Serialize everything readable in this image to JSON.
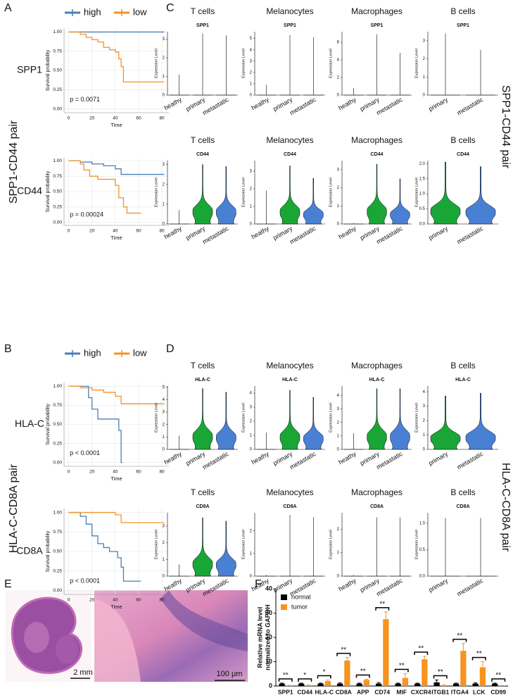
{
  "figure": {
    "letters": [
      "A",
      "B",
      "C",
      "D",
      "E",
      "F"
    ],
    "pair_labels": [
      "SPP1-CD44 pair",
      "HLA-C-CD8A pair"
    ],
    "scale_bars": [
      "2 mm",
      "100 μm"
    ]
  },
  "chart_data": [
    {
      "type": "km",
      "title": "SPP1",
      "annotation": "p = 0.0071",
      "xlabel": "Time",
      "ylabel": "Survival probability",
      "legend": true,
      "xlim": [
        -4,
        86
      ],
      "ylim": [
        -0.05,
        1.05
      ],
      "xticks": [
        0,
        20,
        40,
        60,
        80
      ],
      "yticks": [
        {
          "value": 0,
          "label": "0.00"
        },
        {
          "value": 0.25,
          "label": "0.25"
        },
        {
          "value": 0.5,
          "label": "0.50"
        },
        {
          "value": 0.75,
          "label": "0.75"
        },
        {
          "value": 1,
          "label": "1.00"
        }
      ],
      "series": [
        {
          "name": "high",
          "color": "#4a7fb5",
          "x": [
            0,
            82
          ],
          "values": [
            1,
            1
          ]
        },
        {
          "name": "low",
          "color": "#f39325",
          "x": [
            0,
            10,
            15,
            20,
            25,
            30,
            35,
            40,
            43,
            45,
            47,
            82
          ],
          "values": [
            1,
            0.97,
            0.93,
            0.9,
            0.87,
            0.8,
            0.77,
            0.74,
            0.65,
            0.55,
            0.35,
            0.35
          ]
        }
      ]
    },
    {
      "type": "km",
      "title": "CD44",
      "annotation": "p = 0.00024",
      "xlabel": "Time",
      "ylabel": "Survival probability",
      "legend": false,
      "xlim": [
        -4,
        86
      ],
      "ylim": [
        -0.05,
        1.05
      ],
      "xticks": [
        0,
        20,
        40,
        60,
        80
      ],
      "yticks": [
        {
          "value": 0,
          "label": "0.00"
        },
        {
          "value": 0.25,
          "label": "0.25"
        },
        {
          "value": 0.5,
          "label": "0.50"
        },
        {
          "value": 0.75,
          "label": "0.75"
        },
        {
          "value": 1,
          "label": "1.00"
        }
      ],
      "series": [
        {
          "name": "high",
          "color": "#4a7fb5",
          "x": [
            0,
            10,
            20,
            30,
            40,
            45,
            82
          ],
          "values": [
            1,
            0.98,
            0.95,
            0.92,
            0.87,
            0.78,
            0.78
          ]
        },
        {
          "name": "low",
          "color": "#f39325",
          "x": [
            0,
            10,
            13,
            18,
            25,
            40,
            43,
            47,
            50,
            62
          ],
          "values": [
            1,
            0.95,
            0.85,
            0.75,
            0.7,
            0.6,
            0.4,
            0.25,
            0.15,
            0.15
          ]
        }
      ]
    },
    {
      "type": "km",
      "title": "HLA-C",
      "annotation": "p < 0.0001",
      "xlabel": "Time",
      "ylabel": "Survival probability",
      "legend": true,
      "xlim": [
        -4,
        86
      ],
      "ylim": [
        -0.05,
        1.05
      ],
      "xticks": [
        0,
        20,
        40,
        60,
        80
      ],
      "yticks": [
        {
          "value": 0,
          "label": "0.00"
        },
        {
          "value": 0.25,
          "label": "0.25"
        },
        {
          "value": 0.5,
          "label": "0.50"
        },
        {
          "value": 0.75,
          "label": "0.75"
        },
        {
          "value": 1,
          "label": "1.00"
        }
      ],
      "series": [
        {
          "name": "high",
          "color": "#4a7fb5",
          "x": [
            0,
            17,
            20,
            25,
            40,
            43,
            45,
            46
          ],
          "values": [
            1,
            0.85,
            0.7,
            0.57,
            0.57,
            0.42,
            0,
            0
          ]
        },
        {
          "name": "low",
          "color": "#f39325",
          "x": [
            0,
            10,
            20,
            30,
            40,
            45,
            82
          ],
          "values": [
            1,
            0.98,
            0.95,
            0.92,
            0.87,
            0.77,
            0.77
          ]
        }
      ]
    },
    {
      "type": "km",
      "title": "CD8A",
      "annotation": "p < 0.0001",
      "xlabel": "Time",
      "ylabel": "Survival probability",
      "legend": false,
      "xlim": [
        -4,
        86
      ],
      "ylim": [
        -0.05,
        1.05
      ],
      "xticks": [
        0,
        20,
        40,
        60,
        80
      ],
      "yticks": [
        {
          "value": 0,
          "label": "0.00"
        },
        {
          "value": 0.25,
          "label": "0.25"
        },
        {
          "value": 0.5,
          "label": "0.50"
        },
        {
          "value": 0.75,
          "label": "0.75"
        },
        {
          "value": 1,
          "label": "1.00"
        }
      ],
      "series": [
        {
          "name": "high",
          "color": "#4a7fb5",
          "x": [
            0,
            10,
            15,
            20,
            25,
            30,
            35,
            42,
            45,
            47,
            62
          ],
          "values": [
            1,
            0.95,
            0.85,
            0.7,
            0.6,
            0.55,
            0.5,
            0.42,
            0.3,
            0.12,
            0.12
          ]
        },
        {
          "name": "low",
          "color": "#f39325",
          "x": [
            0,
            40,
            45,
            82
          ],
          "values": [
            1,
            0.97,
            0.87,
            0.87
          ]
        }
      ]
    },
    {
      "type": "violin",
      "title": "T cells",
      "subtitle": "SPP1",
      "ylabel": "Expression Level",
      "categories": [
        "heathy",
        "primary",
        "metastatic"
      ],
      "values": [
        1.1,
        3.3,
        3.2
      ],
      "filled": [
        false,
        false,
        false
      ],
      "colors": [
        "#000000",
        "#000000",
        "#000000"
      ],
      "ylim": [
        0,
        3.4
      ],
      "yticks": [
        0,
        1,
        2,
        3
      ]
    },
    {
      "type": "violin",
      "title": "Melanocytes",
      "subtitle": "SPP1",
      "ylabel": "Expression Level",
      "categories": [
        "heathy",
        "primary",
        "metastatic"
      ],
      "values": [
        0.9,
        5.3,
        5.1
      ],
      "filled": [
        false,
        false,
        false
      ],
      "colors": [
        "#000000",
        "#000000",
        "#000000"
      ],
      "ylim": [
        0,
        5.6
      ],
      "yticks": [
        0,
        1,
        2,
        3,
        4,
        5
      ]
    },
    {
      "type": "violin",
      "title": "Macrophages",
      "subtitle": "SPP1",
      "ylabel": "Expression Level",
      "categories": [
        "heathy",
        "primary",
        "metastatic"
      ],
      "values": [
        0.8,
        6.9,
        4.8
      ],
      "filled": [
        false,
        false,
        false
      ],
      "colors": [
        "#000000",
        "#000000",
        "#000000"
      ],
      "ylim": [
        0,
        7.2
      ],
      "yticks": [
        0,
        2,
        4,
        6
      ]
    },
    {
      "type": "violin",
      "title": "B cells",
      "subtitle": "SPP1",
      "ylabel": "Expression Level",
      "categories": [
        "primary",
        "metastatic"
      ],
      "values": [
        3.4,
        2.5
      ],
      "filled": [
        false,
        false
      ],
      "colors": [
        "#000000",
        "#000000"
      ],
      "ylim": [
        0,
        3.5
      ],
      "yticks": [
        0,
        1,
        2,
        3
      ]
    },
    {
      "type": "violin",
      "title": "T cells",
      "subtitle": "CD44",
      "ylabel": "Expression Level",
      "categories": [
        "heathy",
        "primary",
        "metastatic"
      ],
      "values": [
        0.7,
        3.0,
        2.9
      ],
      "filled": [
        false,
        true,
        true
      ],
      "colors": [
        "#000000",
        "#1aa637",
        "#4a80d4"
      ],
      "ylim": [
        0,
        3.2
      ],
      "yticks": [
        0,
        1,
        2,
        3
      ]
    },
    {
      "type": "violin",
      "title": "Melanocytes",
      "subtitle": "CD44",
      "ylabel": "Expression Level",
      "categories": [
        "heathy",
        "primary",
        "metastatic"
      ],
      "values": [
        1.9,
        3.3,
        2.6
      ],
      "filled": [
        false,
        true,
        true
      ],
      "colors": [
        "#000000",
        "#1aa637",
        "#4a80d4"
      ],
      "ylim": [
        0,
        3.6
      ],
      "yticks": [
        0,
        1,
        2,
        3
      ]
    },
    {
      "type": "violin",
      "title": "Macrophages",
      "subtitle": "CD44",
      "ylabel": "Expression Level",
      "categories": [
        "heathy",
        "primary",
        "metastatic"
      ],
      "values": [
        0.05,
        3.3,
        2.5
      ],
      "filled": [
        false,
        true,
        true
      ],
      "colors": [
        "#000000",
        "#1aa637",
        "#4a80d4"
      ],
      "ylim": [
        0,
        3.5
      ],
      "yticks": [
        0,
        1,
        2,
        3
      ]
    },
    {
      "type": "violin",
      "title": "B cells",
      "subtitle": "CD44",
      "ylabel": "Expression Level",
      "categories": [
        "primary",
        "metastatic"
      ],
      "values": [
        2.05,
        1.9
      ],
      "filled": [
        true,
        true
      ],
      "colors": [
        "#1aa637",
        "#4a80d4"
      ],
      "ylim": [
        0,
        2.1
      ],
      "yticks": [
        {
          "value": 0,
          "label": "0.0"
        },
        {
          "value": 0.5,
          "label": "0.5"
        },
        {
          "value": 1,
          "label": "1.0"
        },
        {
          "value": 1.5,
          "label": "1.5"
        },
        {
          "value": 2,
          "label": "2.0"
        }
      ]
    },
    {
      "type": "violin",
      "title": "T cells",
      "subtitle": "HLA-C",
      "ylabel": "Expression Level",
      "categories": [
        "heathy",
        "primary",
        "metastatic"
      ],
      "values": [
        1.1,
        4.9,
        4.6
      ],
      "filled": [
        false,
        true,
        true
      ],
      "colors": [
        "#000000",
        "#1aa637",
        "#4a80d4"
      ],
      "ylim": [
        0,
        5.1
      ],
      "yticks": [
        0,
        1,
        2,
        3,
        4,
        5
      ]
    },
    {
      "type": "violin",
      "title": "Melanocytes",
      "subtitle": "HLA-C",
      "ylabel": "Expression Level",
      "categories": [
        "heathy",
        "primary",
        "metastatic"
      ],
      "values": [
        1.2,
        4.2,
        3.7
      ],
      "filled": [
        false,
        true,
        true
      ],
      "colors": [
        "#000000",
        "#1aa637",
        "#4a80d4"
      ],
      "ylim": [
        0,
        4.5
      ],
      "yticks": [
        0,
        1,
        2,
        3,
        4
      ]
    },
    {
      "type": "violin",
      "title": "Macrophages",
      "subtitle": "HLA-C",
      "ylabel": "Expression Level",
      "categories": [
        "heathy",
        "primary",
        "metastatic"
      ],
      "values": [
        1.2,
        4.5,
        4.5
      ],
      "filled": [
        false,
        true,
        true
      ],
      "colors": [
        "#000000",
        "#1aa637",
        "#4a80d4"
      ],
      "ylim": [
        0,
        4.7
      ],
      "yticks": [
        0,
        1,
        2,
        3,
        4
      ]
    },
    {
      "type": "violin",
      "title": "B cells",
      "subtitle": "HLA-C",
      "ylabel": "Expression Level",
      "categories": [
        "primary",
        "metastatic"
      ],
      "values": [
        3.7,
        3.9
      ],
      "filled": [
        true,
        true
      ],
      "colors": [
        "#1aa637",
        "#4a80d4"
      ],
      "ylim": [
        0,
        4.4
      ],
      "yticks": [
        0,
        1,
        2,
        3,
        4
      ]
    },
    {
      "type": "violin",
      "title": "T cells",
      "subtitle": "CD8A",
      "ylabel": "Expression Level",
      "categories": [
        "heathy",
        "primary",
        "metastatic"
      ],
      "values": [
        0.7,
        3.5,
        3.3
      ],
      "filled": [
        false,
        true,
        true
      ],
      "colors": [
        "#000000",
        "#1aa637",
        "#4a80d4"
      ],
      "ylim": [
        0,
        3.8
      ],
      "yticks": [
        0,
        1,
        2,
        3
      ]
    },
    {
      "type": "violin",
      "title": "Melanocytes",
      "subtitle": "CD8A",
      "ylabel": "Expression Level",
      "categories": [
        "heathy",
        "primary",
        "metastatic"
      ],
      "values": [
        0.05,
        2.7,
        2.6
      ],
      "filled": [
        false,
        false,
        false
      ],
      "colors": [
        "#000000",
        "#000000",
        "#000000"
      ],
      "ylim": [
        0,
        2.8
      ],
      "yticks": [
        0,
        1,
        2
      ]
    },
    {
      "type": "violin",
      "title": "Macrophages",
      "subtitle": "CD8A",
      "ylabel": "Expression Level",
      "categories": [
        "heathy",
        "primary",
        "metastatic"
      ],
      "values": [
        0.05,
        2.5,
        2.5
      ],
      "filled": [
        false,
        false,
        false
      ],
      "colors": [
        "#000000",
        "#000000",
        "#000000"
      ],
      "ylim": [
        0,
        2.7
      ],
      "yticks": [
        0,
        1,
        2
      ]
    },
    {
      "type": "violin",
      "title": "B cells",
      "subtitle": "CD8A",
      "ylabel": "Expression Level",
      "categories": [
        "primary",
        "metastatic"
      ],
      "values": [
        1.1,
        1.1
      ],
      "filled": [
        false,
        false
      ],
      "colors": [
        "#000000",
        "#000000"
      ],
      "ylim": [
        0,
        1.2
      ],
      "yticks": [
        {
          "value": 0,
          "label": "0.0"
        },
        {
          "value": 0.5,
          "label": "0.5"
        },
        {
          "value": 1,
          "label": "1.0"
        }
      ]
    },
    {
      "type": "bar",
      "ylabel": [
        "Relative mRNA level",
        "normalized to GAPDH"
      ],
      "legend": "top-left",
      "categories": [
        "SPP1",
        "CD44",
        "HLA-C",
        "CD8A",
        "APP",
        "CD74",
        "MIF",
        "CXCR4",
        "ITGB1",
        "ITGA4",
        "LCK",
        "CD99"
      ],
      "significance": [
        "**",
        "*",
        "*",
        "**",
        "**",
        "**",
        "**",
        "**",
        "**",
        "**",
        "**",
        "**"
      ],
      "ylim": [
        0,
        40
      ],
      "yticks": [
        0,
        10,
        20,
        30,
        40
      ],
      "series": [
        {
          "name": "normal",
          "color": "#000000",
          "values": [
            1,
            1,
            1,
            1,
            1,
            1,
            1,
            1,
            1.5,
            1,
            1,
            1
          ],
          "errors": [
            0.2,
            0.2,
            0.2,
            0.3,
            0.2,
            0.4,
            0.2,
            0.2,
            1,
            0.2,
            0.3,
            0.2
          ]
        },
        {
          "name": "tumor",
          "color": "#f7931e",
          "values": [
            0.2,
            0.3,
            2,
            10.5,
            2.5,
            27.5,
            3.3,
            11,
            0.3,
            14.5,
            7.7,
            0.1
          ],
          "errors": [
            0.1,
            0.1,
            0.5,
            1.2,
            0.3,
            3,
            1.8,
            1.2,
            0.2,
            3,
            2.3,
            0.1
          ]
        }
      ]
    }
  ]
}
